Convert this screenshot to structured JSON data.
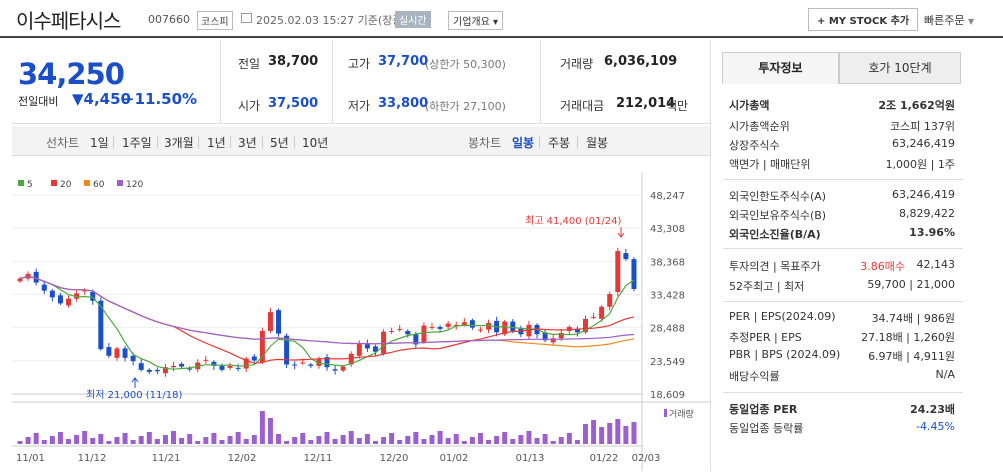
{
  "header": {
    "title": "이수페타시스",
    "code": "007660",
    "market": "코스피",
    "date": "2025.02.03 15:27 기준(장중)",
    "live_label": "실시간",
    "corp_label": "기업개요 ▾",
    "mystock_label": "+ MY STOCK 추가",
    "quick_label": "빠른주문"
  },
  "quote": {
    "price": "34,250",
    "change_label": "전일대비",
    "change_value": "▼4,450",
    "change_pct": "−11.50%",
    "prev_label": "전일",
    "prev": "38,700",
    "high_label": "고가",
    "high": "37,700",
    "upper": "(상한가 50,300)",
    "volume_label": "거래량",
    "volume": "6,036,109",
    "open_label": "시가",
    "open": "37,500",
    "low_label": "저가",
    "low": "33,800",
    "lower": "(하한가 27,100)",
    "amount_label": "거래대금",
    "amount": "212,014",
    "amount_unit": "백만"
  },
  "periods": {
    "line_label": "선차트",
    "items": [
      "1일",
      "1주일",
      "3개월",
      "1년",
      "3년",
      "5년",
      "10년"
    ],
    "candle_label": "봉차트",
    "candle_items": [
      "일봉",
      "주봉",
      "월봉"
    ]
  },
  "chart_data": {
    "type": "candlestick",
    "legend": [
      "5",
      "20",
      "60",
      "120"
    ],
    "legend_colors": [
      "#4ca83f",
      "#e53935",
      "#f08a1c",
      "#9c5fd0"
    ],
    "y_ticks": [
      "48,247",
      "43,308",
      "38,368",
      "33,428",
      "28,488",
      "23,549",
      "18,609"
    ],
    "x_ticks": [
      "11/01",
      "11/12",
      "11/21",
      "12/02",
      "12/11",
      "12/20",
      "01/02",
      "01/13",
      "01/22",
      "02/03"
    ],
    "high_annotation": "최고 41,400 (01/24)",
    "low_annotation": "최저 21,000 (11/18)",
    "volume_label": "거래량",
    "closes": [
      35800,
      36500,
      35200,
      34000,
      33000,
      32100,
      32800,
      33600,
      34100,
      32500,
      25300,
      24300,
      25400,
      24000,
      23500,
      22200,
      21900,
      22000,
      22600,
      22800,
      22700,
      22300,
      23300,
      23700,
      22800,
      22200,
      22800,
      22400,
      23900,
      23600,
      28000,
      30800,
      27600,
      23000,
      22900,
      23300,
      22800,
      23800,
      22600,
      22100,
      22700,
      24600,
      26100,
      25400,
      24900,
      27900,
      28000,
      28300,
      27500,
      26000,
      28800,
      28600,
      28300,
      29100,
      28900,
      29300,
      28500,
      28200,
      29200,
      27800,
      29400,
      28000,
      27500,
      28900,
      27500,
      26600,
      26900,
      27700,
      28600,
      27800,
      29800,
      30100,
      31600,
      33500,
      39900,
      38700,
      34250
    ]
  },
  "right": {
    "tab1": "투자정보",
    "tab2": "호가 10단계",
    "rows": [
      {
        "l": "시가총액",
        "v": "2조 1,662억원"
      },
      {
        "l": "시가총액순위",
        "v": "코스피 137위"
      },
      {
        "l": "상장주식수",
        "v": "63,246,419"
      },
      {
        "l": "액면가 | 매매단위",
        "v": "1,000원 | 1주"
      },
      {
        "l": "외국인한도주식수(A)",
        "v": "63,246,419"
      },
      {
        "l": "외국인보유주식수(B)",
        "v": "8,829,422"
      },
      {
        "l": "외국인소진율(B/A)",
        "v": "13.96%"
      },
      {
        "l": "투자의견 | 목표주가",
        "v1": "3.86매수",
        "v": "42,143"
      },
      {
        "l": "52주최고 | 최저",
        "v": "59,700 | 21,000"
      },
      {
        "l": "PER | EPS(2024.09)",
        "v": "34.74배 | 986원"
      },
      {
        "l": "추정PER | EPS",
        "v": "27.18배 | 1,260원"
      },
      {
        "l": "PBR | BPS (2024.09)",
        "v": "6.97배 | 4,911원"
      },
      {
        "l": "배당수익률",
        "v": "N/A"
      },
      {
        "l": "동일업종 PER",
        "v": "24.23배"
      },
      {
        "l": "동일업종 등락률",
        "v": "-4.45%"
      }
    ]
  }
}
